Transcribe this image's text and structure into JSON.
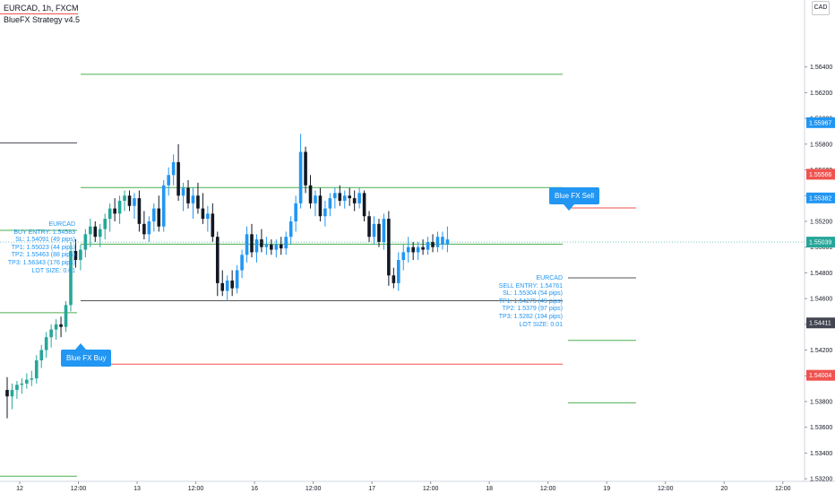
{
  "header": {
    "symbol": "EURCAD, 1h, FXCM",
    "study": "BlueFX Strategy v4.5",
    "currency": "CAD"
  },
  "signals": {
    "buy_label": "Blue FX Buy",
    "sell_label": "Blue FX Sell"
  },
  "buy_info": {
    "lines": [
      "EURCAD",
      "BUY ENTRY: 1.54583",
      "SL: 1.54091 (49 pips)",
      "TP1: 1.55023 (44 pips)",
      "TP2: 1.55463 (88 pips)",
      "TP3: 1.56343 (176 pips)",
      "LOT SIZE: 0.01"
    ]
  },
  "sell_info": {
    "lines": [
      "EURCAD",
      "SELL ENTRY: 1.54761",
      "SL: 1.55304 (54 pips)",
      "TP1: 1.54275 (49 pips)",
      "TP2: 1.5379 (97 pips)",
      "TP3: 1.5282 (194 pips)",
      "LOT SIZE: 0.01"
    ]
  },
  "price_badges": [
    {
      "label": "1.55967",
      "price": 1.55967,
      "color": "#2196f3"
    },
    {
      "label": "1.55566",
      "price": 1.55566,
      "color": "#ef5350"
    },
    {
      "label": "1.55382",
      "price": 1.55382,
      "color": "#2196f3"
    },
    {
      "label": "1.55039",
      "price": 1.55039,
      "color": "#26a69a"
    },
    {
      "label": "1.54411",
      "price": 1.54411,
      "color": "#434651"
    },
    {
      "label": "1.54004",
      "price": 1.54004,
      "color": "#ef5350"
    }
  ],
  "chart_data": {
    "type": "candlestick",
    "symbol": "EURCAD",
    "timeframe": "1h",
    "ylim": [
      1.5318,
      1.5692
    ],
    "y_ticks": [
      "1.56400",
      "1.56200",
      "1.56000",
      "1.55800",
      "1.55600",
      "1.55400",
      "1.55200",
      "1.55000",
      "1.54800",
      "1.54600",
      "1.54400",
      "1.54200",
      "1.54000",
      "1.53800",
      "1.53600",
      "1.53400",
      "1.53200"
    ],
    "x_ticks": [
      "12",
      "12:00",
      "13",
      "12:00",
      "16",
      "12:00",
      "17",
      "12:00",
      "18",
      "12:00",
      "19",
      "12:00",
      "20",
      "12:00"
    ],
    "x_tick_bars": [
      0,
      12,
      24,
      36,
      48,
      60,
      72,
      84,
      96,
      108,
      120,
      132,
      144,
      156
    ],
    "current_price": 1.55039,
    "candles": [
      [
        1.5389,
        1.5399,
        1.5367,
        1.5384
      ],
      [
        1.5384,
        1.5394,
        1.5374,
        1.5389
      ],
      [
        1.5389,
        1.5396,
        1.5382,
        1.5393
      ],
      [
        1.5393,
        1.5398,
        1.5386,
        1.5394
      ],
      [
        1.5394,
        1.5402,
        1.539,
        1.5397
      ],
      [
        1.5397,
        1.5404,
        1.5392,
        1.5398
      ],
      [
        1.5398,
        1.5416,
        1.5394,
        1.5412
      ],
      [
        1.5412,
        1.5424,
        1.5406,
        1.542
      ],
      [
        1.542,
        1.5434,
        1.5414,
        1.543
      ],
      [
        1.543,
        1.544,
        1.5422,
        1.5436
      ],
      [
        1.5436,
        1.5444,
        1.5428,
        1.544
      ],
      [
        1.544,
        1.5446,
        1.543,
        1.5438
      ],
      [
        1.5438,
        1.5458,
        1.5434,
        1.5455
      ],
      [
        1.5455,
        1.5504,
        1.545,
        1.5497
      ],
      [
        1.5497,
        1.5506,
        1.5484,
        1.549
      ],
      [
        1.549,
        1.5502,
        1.5482,
        1.5498
      ],
      [
        1.5498,
        1.5514,
        1.5492,
        1.551
      ],
      [
        1.551,
        1.5522,
        1.55,
        1.5516
      ],
      [
        1.5516,
        1.552,
        1.5504,
        1.5508
      ],
      [
        1.5508,
        1.5518,
        1.55,
        1.5514
      ],
      [
        1.5514,
        1.5526,
        1.5506,
        1.5522
      ],
      [
        1.5522,
        1.5534,
        1.5512,
        1.553
      ],
      [
        1.553,
        1.5538,
        1.552,
        1.5526
      ],
      [
        1.5526,
        1.554,
        1.5518,
        1.5536
      ],
      [
        1.5536,
        1.5544,
        1.5528,
        1.554
      ],
      [
        1.554,
        1.5544,
        1.5528,
        1.5532
      ],
      [
        1.5532,
        1.5542,
        1.5522,
        1.5538
      ],
      [
        1.5538,
        1.5544,
        1.5512,
        1.5518
      ],
      [
        1.5518,
        1.5528,
        1.5506,
        1.551
      ],
      [
        1.551,
        1.5524,
        1.5504,
        1.552
      ],
      [
        1.552,
        1.5534,
        1.5512,
        1.553
      ],
      [
        1.553,
        1.554,
        1.5512,
        1.5516
      ],
      [
        1.5516,
        1.5552,
        1.5512,
        1.5548
      ],
      [
        1.5548,
        1.5562,
        1.554,
        1.5556
      ],
      [
        1.5556,
        1.5572,
        1.5548,
        1.5566
      ],
      [
        1.5566,
        1.558,
        1.5536,
        1.554
      ],
      [
        1.554,
        1.555,
        1.5528,
        1.5546
      ],
      [
        1.5546,
        1.5552,
        1.553,
        1.5534
      ],
      [
        1.5534,
        1.5546,
        1.5522,
        1.554
      ],
      [
        1.554,
        1.555,
        1.5526,
        1.553
      ],
      [
        1.553,
        1.5542,
        1.5518,
        1.5522
      ],
      [
        1.5522,
        1.5532,
        1.5512,
        1.5526
      ],
      [
        1.5526,
        1.5534,
        1.5504,
        1.5508
      ],
      [
        1.5508,
        1.5512,
        1.5462,
        1.5472
      ],
      [
        1.5472,
        1.5482,
        1.5462,
        1.5466
      ],
      [
        1.5466,
        1.5478,
        1.5458,
        1.5474
      ],
      [
        1.5474,
        1.5482,
        1.5462,
        1.5468
      ],
      [
        1.5468,
        1.5486,
        1.5464,
        1.5482
      ],
      [
        1.5482,
        1.5498,
        1.5476,
        1.5494
      ],
      [
        1.5494,
        1.5516,
        1.5488,
        1.551
      ],
      [
        1.551,
        1.5518,
        1.5492,
        1.5496
      ],
      [
        1.5496,
        1.551,
        1.5488,
        1.5506
      ],
      [
        1.5506,
        1.5514,
        1.5496,
        1.55
      ],
      [
        1.55,
        1.5508,
        1.5494,
        1.5502
      ],
      [
        1.5502,
        1.5506,
        1.5494,
        1.5498
      ],
      [
        1.5498,
        1.5506,
        1.5492,
        1.5502
      ],
      [
        1.5502,
        1.5508,
        1.5494,
        1.5499
      ],
      [
        1.5499,
        1.5512,
        1.5494,
        1.5508
      ],
      [
        1.5508,
        1.5524,
        1.5502,
        1.552
      ],
      [
        1.552,
        1.554,
        1.5512,
        1.5534
      ],
      [
        1.5534,
        1.5588,
        1.553,
        1.5574
      ],
      [
        1.5574,
        1.5578,
        1.5542,
        1.5548
      ],
      [
        1.5548,
        1.5556,
        1.553,
        1.5534
      ],
      [
        1.5534,
        1.5544,
        1.5524,
        1.554
      ],
      [
        1.554,
        1.5546,
        1.552,
        1.5524
      ],
      [
        1.5524,
        1.5536,
        1.5516,
        1.553
      ],
      [
        1.553,
        1.5542,
        1.5524,
        1.5538
      ],
      [
        1.5538,
        1.5546,
        1.553,
        1.5542
      ],
      [
        1.5542,
        1.5548,
        1.5532,
        1.5536
      ],
      [
        1.5536,
        1.5544,
        1.553,
        1.554
      ],
      [
        1.554,
        1.5546,
        1.5532,
        1.5538
      ],
      [
        1.5538,
        1.5544,
        1.5528,
        1.5534
      ],
      [
        1.5534,
        1.5546,
        1.553,
        1.5542
      ],
      [
        1.5542,
        1.5544,
        1.552,
        1.5524
      ],
      [
        1.5524,
        1.5528,
        1.5504,
        1.5508
      ],
      [
        1.5508,
        1.5524,
        1.5502,
        1.5518
      ],
      [
        1.5518,
        1.5522,
        1.55,
        1.5504
      ],
      [
        1.5504,
        1.5526,
        1.5498,
        1.5522
      ],
      [
        1.5522,
        1.5528,
        1.547,
        1.5478
      ],
      [
        1.5478,
        1.5484,
        1.5468,
        1.5472
      ],
      [
        1.5472,
        1.5496,
        1.5466,
        1.549
      ],
      [
        1.549,
        1.5502,
        1.5482,
        1.5496
      ],
      [
        1.5496,
        1.5508,
        1.5488,
        1.55
      ],
      [
        1.55,
        1.5504,
        1.549,
        1.5496
      ],
      [
        1.5496,
        1.5504,
        1.549,
        1.55
      ],
      [
        1.55,
        1.5506,
        1.5494,
        1.5498
      ],
      [
        1.5498,
        1.5508,
        1.5494,
        1.5504
      ],
      [
        1.5504,
        1.551,
        1.5496,
        1.55
      ],
      [
        1.55,
        1.5512,
        1.5496,
        1.5508
      ],
      [
        1.5508,
        1.5512,
        1.5498,
        1.5502
      ],
      [
        1.5502,
        1.5516,
        1.5496,
        1.5506
      ]
    ],
    "levels": [
      {
        "price": 1.56343,
        "x_from": 90,
        "x_to": 628,
        "color": "#4caf50"
      },
      {
        "price": 1.55463,
        "x_from": 90,
        "x_to": 628,
        "color": "#4caf50"
      },
      {
        "price": 1.55023,
        "x_from": 90,
        "x_to": 628,
        "color": "#4caf50"
      },
      {
        "price": 1.54583,
        "x_from": 90,
        "x_to": 628,
        "color": "#555555"
      },
      {
        "price": 1.54091,
        "x_from": 90,
        "x_to": 628,
        "color": "#ef5350"
      },
      {
        "price": 1.55304,
        "x_from": 634,
        "x_to": 710,
        "color": "#ef5350"
      },
      {
        "price": 1.54761,
        "x_from": 634,
        "x_to": 710,
        "color": "#555555"
      },
      {
        "price": 1.54275,
        "x_from": 634,
        "x_to": 710,
        "color": "#4caf50"
      },
      {
        "price": 1.5379,
        "x_from": 634,
        "x_to": 710,
        "color": "#4caf50"
      },
      {
        "price": 1.5581,
        "x_from": 0,
        "x_to": 86,
        "color": "#434651"
      },
      {
        "price": 1.5513,
        "x_from": 0,
        "x_to": 86,
        "color": "#4caf50"
      },
      {
        "price": 1.5449,
        "x_from": 0,
        "x_to": 86,
        "color": "#4caf50"
      },
      {
        "price": 1.5322,
        "x_from": 0,
        "x_to": 86,
        "color": "#4caf50"
      }
    ]
  }
}
